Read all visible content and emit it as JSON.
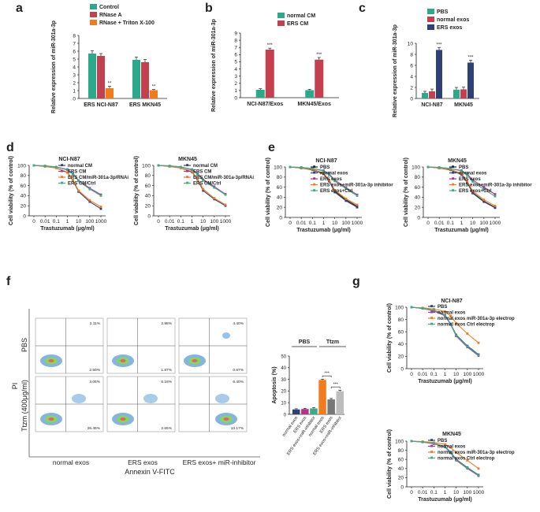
{
  "colors": {
    "teal": "#2ca98a",
    "red": "#c4404f",
    "orange": "#f07c1d",
    "navy": "#2f3f78",
    "magenta": "#b4318a",
    "green": "#3aaa8a",
    "gray": "#777777",
    "lightgray": "#bdbdbd",
    "black": "#222222"
  },
  "panel_letters": [
    "a",
    "b",
    "c",
    "d",
    "e",
    "f",
    "g"
  ],
  "chart_data": [
    {
      "id": "a",
      "type": "bar",
      "legend": [
        "Control",
        "RNase A",
        "RNase + Triton X-100"
      ],
      "categories": [
        "ERS NCI-N87",
        "ERS MKN45"
      ],
      "series": [
        {
          "name": "Control",
          "values": [
            5.7,
            4.9
          ],
          "errors": [
            0.35,
            0.35
          ]
        },
        {
          "name": "RNase A",
          "values": [
            5.4,
            4.6
          ],
          "errors": [
            0.3,
            0.35
          ]
        },
        {
          "name": "RNase + Triton X-100",
          "values": [
            1.3,
            1.05
          ],
          "errors": [
            0.25,
            0.1
          ]
        }
      ],
      "annotations": [
        "**",
        "**"
      ],
      "ylabel": "Relative expression of miR-301a-3p",
      "yticks": [
        "0",
        "1",
        "2",
        "3",
        "4",
        "5",
        "6",
        "7",
        "8"
      ],
      "ylim": [
        0,
        8
      ]
    },
    {
      "id": "b",
      "type": "bar",
      "legend": [
        "normal CM",
        "ERS CM"
      ],
      "categories": [
        "NCI-N87/Exos",
        "MKN45/Exos"
      ],
      "series": [
        {
          "name": "normal CM",
          "values": [
            1.1,
            1.05
          ],
          "errors": [
            0.15,
            0.12
          ]
        },
        {
          "name": "ERS CM",
          "values": [
            6.7,
            5.3
          ],
          "errors": [
            0.2,
            0.3
          ]
        }
      ],
      "annotations": [
        "***",
        "***"
      ],
      "ylabel": "Relative expression of miR-301a-3p",
      "yticks": [
        "0",
        "1",
        "2",
        "3",
        "4",
        "5",
        "6",
        "7",
        "8",
        "9"
      ],
      "ylim": [
        0,
        9
      ]
    },
    {
      "id": "c",
      "type": "bar",
      "legend": [
        "PBS",
        "normal exos",
        "ERS exos"
      ],
      "categories": [
        "NCI-N87",
        "MKN45"
      ],
      "series": [
        {
          "name": "PBS",
          "values": [
            1.0,
            1.6
          ],
          "errors": [
            0.3,
            0.4
          ]
        },
        {
          "name": "normal exos",
          "values": [
            1.3,
            1.65
          ],
          "errors": [
            0.4,
            0.4
          ]
        },
        {
          "name": "ERS exos",
          "values": [
            8.8,
            6.5
          ],
          "errors": [
            0.45,
            0.45
          ]
        }
      ],
      "annotations": [
        "***",
        "***"
      ],
      "ylabel": "Relative expression of miR-301a-3p",
      "yticks": [
        "0",
        "2",
        "4",
        "6",
        "8",
        "10"
      ],
      "ylim": [
        0,
        10
      ]
    },
    {
      "id": "d1",
      "type": "line",
      "title": "NCI-N87",
      "legend": [
        "normal CM",
        "ERS CM",
        "ERS CM/miR-301a-3p/RNAi",
        "ERS CM/Ctrl"
      ],
      "series": [
        {
          "name": "normal CM",
          "values": [
            100,
            98,
            95,
            86,
            70,
            48,
            28,
            14
          ]
        },
        {
          "name": "ERS CM",
          "values": [
            100,
            99,
            97,
            92,
            84,
            70,
            55,
            42
          ]
        },
        {
          "name": "ERS CM/miR-301a-3p/RNAi",
          "values": [
            100,
            98,
            95,
            86,
            71,
            50,
            31,
            18
          ]
        },
        {
          "name": "ERS CM/Ctrl",
          "values": [
            100,
            99,
            97,
            91,
            83,
            69,
            53,
            40
          ]
        }
      ]
    },
    {
      "id": "d2",
      "type": "line",
      "title": "MKN45",
      "legend": [
        "normal CM",
        "ERS CM",
        "ERS CM/miR-301a-3p/RNAi",
        "ERS CM/Ctrl"
      ],
      "series": [
        {
          "name": "normal CM",
          "values": [
            100,
            98,
            95,
            87,
            72,
            50,
            33,
            20
          ]
        },
        {
          "name": "ERS CM",
          "values": [
            100,
            99,
            97,
            92,
            84,
            72,
            58,
            43
          ]
        },
        {
          "name": "ERS CM/miR-301a-3p/RNAi",
          "values": [
            100,
            98,
            95,
            88,
            73,
            53,
            35,
            22
          ]
        },
        {
          "name": "ERS CM/Ctrl",
          "values": [
            100,
            99,
            97,
            91,
            83,
            70,
            56,
            42
          ]
        }
      ]
    },
    {
      "id": "e1",
      "type": "line",
      "title": "NCI-N87",
      "legend": [
        "PBS",
        "normal exos",
        "ERS exos",
        "ERS exos+miR-301a-3p inhibitor",
        "ERS exos+Ctrl"
      ],
      "series": [
        {
          "name": "PBS",
          "values": [
            100,
            98,
            95,
            88,
            73,
            52,
            35,
            22
          ]
        },
        {
          "name": "normal exos",
          "values": [
            100,
            98,
            94,
            86,
            72,
            50,
            33,
            20
          ]
        },
        {
          "name": "ERS exos",
          "values": [
            100,
            99,
            97,
            93,
            86,
            74,
            59,
            45
          ]
        },
        {
          "name": "ERS exos+miR-301a-3p inhibitor",
          "values": [
            100,
            98,
            95,
            88,
            74,
            54,
            37,
            25
          ]
        },
        {
          "name": "ERS exos+Ctrl",
          "values": [
            100,
            99,
            97,
            92,
            84,
            72,
            57,
            43
          ]
        }
      ]
    },
    {
      "id": "e2",
      "type": "line",
      "title": "MKN45",
      "legend": [
        "PBS",
        "normal exos",
        "ERS exos",
        "ERS exos+miR-301a-3p inhibitor",
        "ERS exos+Ctrl"
      ],
      "series": [
        {
          "name": "PBS",
          "values": [
            100,
            98,
            95,
            86,
            70,
            49,
            32,
            20
          ]
        },
        {
          "name": "normal exos",
          "values": [
            100,
            98,
            94,
            85,
            69,
            48,
            31,
            19
          ]
        },
        {
          "name": "ERS exos",
          "values": [
            100,
            99,
            97,
            93,
            86,
            74,
            60,
            46
          ]
        },
        {
          "name": "ERS exos+miR-301a-3p inhibitor",
          "values": [
            100,
            98,
            95,
            87,
            72,
            52,
            35,
            23
          ]
        },
        {
          "name": "ERS exos+Ctrl",
          "values": [
            100,
            99,
            97,
            92,
            84,
            71,
            56,
            42
          ]
        }
      ]
    },
    {
      "id": "f_bar",
      "type": "bar",
      "group_labels": [
        "PBS",
        "Ttzm"
      ],
      "categories": [
        "normal exos",
        "ERS exos",
        "ERS exos+miR-inhibitor",
        "normal exos",
        "ERS exos",
        "ERS exos+miR-inhibitor"
      ],
      "values": [
        4.2,
        4.6,
        5.1,
        29.5,
        12.8,
        19.8
      ],
      "errors": [
        0.6,
        0.6,
        0.6,
        0.7,
        0.8,
        0.9
      ],
      "annotations": [
        "***",
        "***"
      ],
      "ylabel": "Apoptosis (%)",
      "yticks": [
        "0",
        "10",
        "20",
        "30",
        "40",
        "50"
      ],
      "ylim": [
        0,
        50
      ]
    },
    {
      "id": "f_flow",
      "type": "scatter",
      "row_labels": [
        "PBS",
        "Ttzm (400μg/ml)"
      ],
      "col_labels": [
        "normal exos",
        "ERS exos",
        "ERS exos+ miR-inhibitor"
      ],
      "xlabel": "Annexin V-FITC",
      "ylabel": "PI",
      "quadrant_values": [
        [
          "2.11%",
          "2.50%",
          "2.98%",
          "1.87%",
          "4.40%",
          "0.67%"
        ],
        [
          "3.06%",
          "26.45%",
          "6.18%",
          "2.65%",
          "6.40%",
          "13.17%"
        ]
      ]
    },
    {
      "id": "g1",
      "type": "line",
      "title": "NCI-N87",
      "legend": [
        "PBS",
        "normal exos",
        "normal exos miR-301a-3p electrop",
        "normal exos Ctrl electrop"
      ],
      "series": [
        {
          "name": "PBS",
          "values": [
            100,
            98,
            95,
            87,
            73,
            55,
            37,
            23
          ]
        },
        {
          "name": "normal exos",
          "values": [
            100,
            98,
            94,
            86,
            72,
            53,
            35,
            21
          ]
        },
        {
          "name": "normal exos miR-301a-3p electrop",
          "values": [
            100,
            99,
            97,
            93,
            86,
            74,
            57,
            42
          ]
        },
        {
          "name": "normal exos Ctrl electrop",
          "values": [
            100,
            98,
            95,
            87,
            73,
            54,
            36,
            22
          ]
        }
      ]
    },
    {
      "id": "g2",
      "type": "line",
      "title": "MKN45",
      "legend": [
        "PBS",
        "normal exos",
        "normal exos miR-301a-3p electrop",
        "normal exos Ctrl electrop"
      ],
      "series": [
        {
          "name": "PBS",
          "values": [
            100,
            98,
            95,
            88,
            76,
            60,
            42,
            26
          ]
        },
        {
          "name": "normal exos",
          "values": [
            100,
            98,
            94,
            87,
            74,
            58,
            40,
            24
          ]
        },
        {
          "name": "normal exos miR-301a-3p electrop",
          "values": [
            100,
            99,
            97,
            93,
            86,
            75,
            58,
            40
          ]
        },
        {
          "name": "normal exos Ctrl electrop",
          "values": [
            100,
            98,
            95,
            88,
            75,
            59,
            41,
            25
          ]
        }
      ]
    }
  ],
  "dose_axis": {
    "xticks": [
      "0",
      "0.01",
      "0.1",
      "1",
      "10",
      "100",
      "1000"
    ],
    "xlabel": "Trastuzumab (μg/ml)",
    "ylabel": "Cell viability (% of control)",
    "yticks": [
      "0",
      "20",
      "40",
      "60",
      "80",
      "100"
    ]
  }
}
